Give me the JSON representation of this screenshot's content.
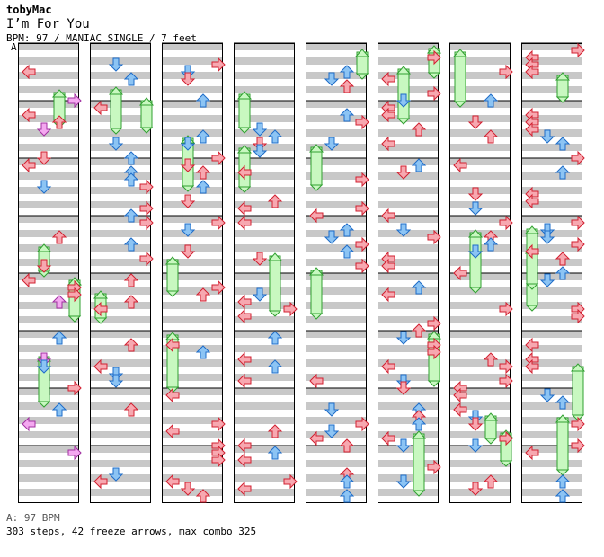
{
  "header": {
    "artist": "tobyMac",
    "title": "I’m For You",
    "info": "BPM: 97 / MANIAC SINGLE / 7 feet",
    "bpm_marker": "A"
  },
  "footer": {
    "bpm_legend": "A: 97 BPM",
    "stats": "303 steps, 42 freeze arrows, max combo 325"
  },
  "colors": {
    "left_right": "#f7a8b0",
    "left_right_stroke": "#d22030",
    "down_up": "#8cc4f4",
    "down_up_stroke": "#1e6cc8",
    "sixteenth": "#f4a8f0",
    "sixteenth_stroke": "#a030a0",
    "freeze": "#c8f8c0",
    "freeze_stroke": "#30a030",
    "stripe": "#c8c8c8"
  },
  "chart": {
    "columns": 8,
    "measures_per_column": 8,
    "lanes": [
      "left",
      "down",
      "up",
      "right"
    ]
  }
}
